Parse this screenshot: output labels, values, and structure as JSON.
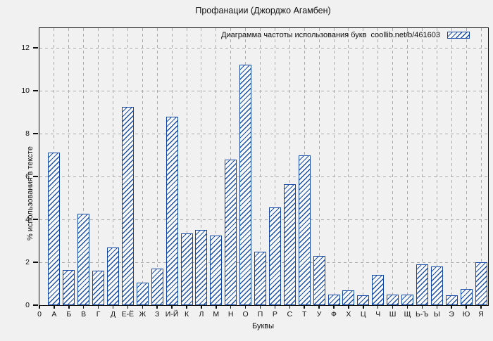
{
  "title": "Профанации (Джорджо Агамбен)",
  "legend": {
    "label": "Диаграмма частоты использования букв  coollib.net/b/461603"
  },
  "axes": {
    "x_label": "Буквы",
    "y_label": "% использования в тексте",
    "origin_label": "0",
    "y_ticks": [
      0,
      2,
      4,
      6,
      8,
      10,
      12
    ]
  },
  "chart_data": {
    "type": "bar",
    "title": "Профанации (Джорджо Агамбен)",
    "legend_entry": "Диаграмма частоты использования букв  coollib.net/b/461603",
    "xlabel": "Буквы",
    "ylabel": "% использования в тексте",
    "categories": [
      "А",
      "Б",
      "В",
      "Г",
      "Д",
      "Е-Ё",
      "Ж",
      "З",
      "И-Й",
      "К",
      "Л",
      "М",
      "Н",
      "О",
      "П",
      "Р",
      "С",
      "Т",
      "У",
      "Ф",
      "Х",
      "Ц",
      "Ч",
      "Ш",
      "Щ",
      "Ь-Ъ",
      "Ы",
      "Э",
      "Ю",
      "Я"
    ],
    "values": [
      7.1,
      1.65,
      4.25,
      1.6,
      2.7,
      9.25,
      1.05,
      1.7,
      8.8,
      3.35,
      3.5,
      3.25,
      6.8,
      11.2,
      2.5,
      4.55,
      5.65,
      7.0,
      2.3,
      0.5,
      0.7,
      0.45,
      1.4,
      0.5,
      0.5,
      1.9,
      1.8,
      0.45,
      0.75,
      2.0
    ],
    "ylim": [
      0,
      12.9
    ],
    "y_tick_step": 2,
    "grid": true,
    "legend_position": "top-right-inside",
    "hatch": "diagonal-backslash",
    "colors": {
      "bar_border": "#1347a5",
      "bar_hatch": "#1b4fa8",
      "background": "#f1f1f1",
      "grid": "#a9a9a9",
      "axis": "#111111"
    }
  }
}
